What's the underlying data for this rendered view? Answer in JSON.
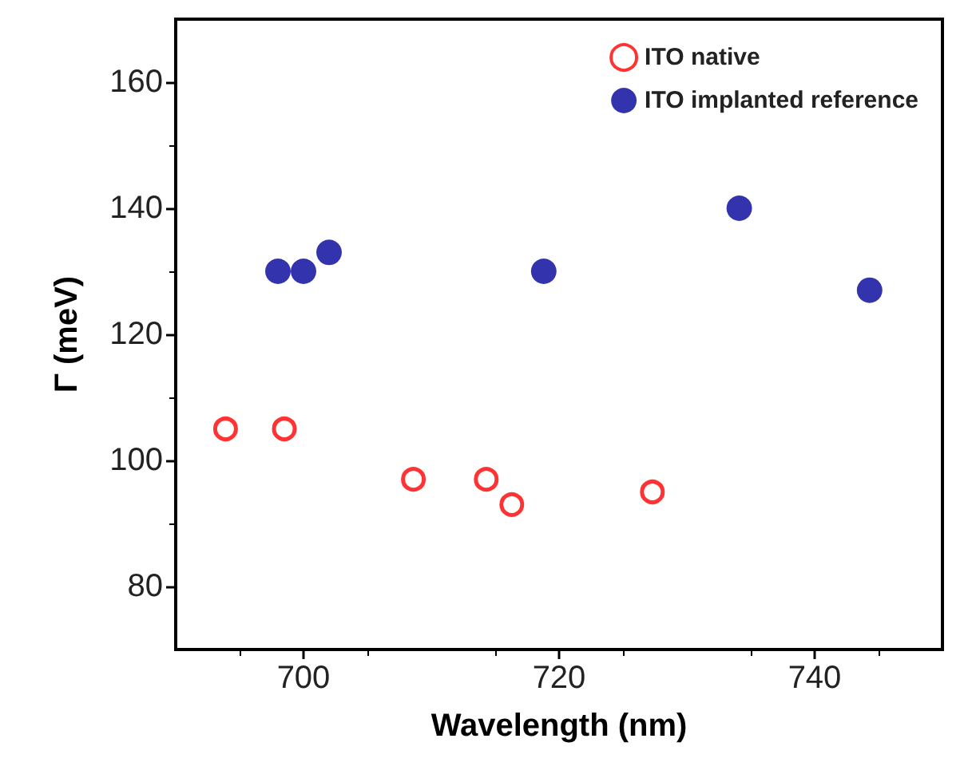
{
  "chart_data": {
    "type": "scatter",
    "xlabel": "Wavelength (nm)",
    "ylabel": "Γ (meV)",
    "xlim": [
      690,
      750
    ],
    "xticks": [
      700,
      720,
      740
    ],
    "ylim": [
      70,
      170
    ],
    "yticks": [
      80,
      100,
      120,
      140,
      160
    ],
    "grid": false,
    "legend": "top right",
    "marker": "circle",
    "series": [
      {
        "name": "ITO native",
        "color": "#ff0000",
        "x": [
          693.9,
          698.5,
          708.6,
          714.3,
          716.3,
          727.3
        ],
        "values": [
          105,
          105,
          97,
          97,
          93,
          95
        ]
      },
      {
        "name": "ITO implanted reference",
        "color": "#000099",
        "x": [
          698.0,
          700.0,
          702.0,
          718.8,
          734.1,
          744.3
        ],
        "values": [
          130,
          130,
          133,
          130,
          140,
          127
        ]
      }
    ]
  }
}
